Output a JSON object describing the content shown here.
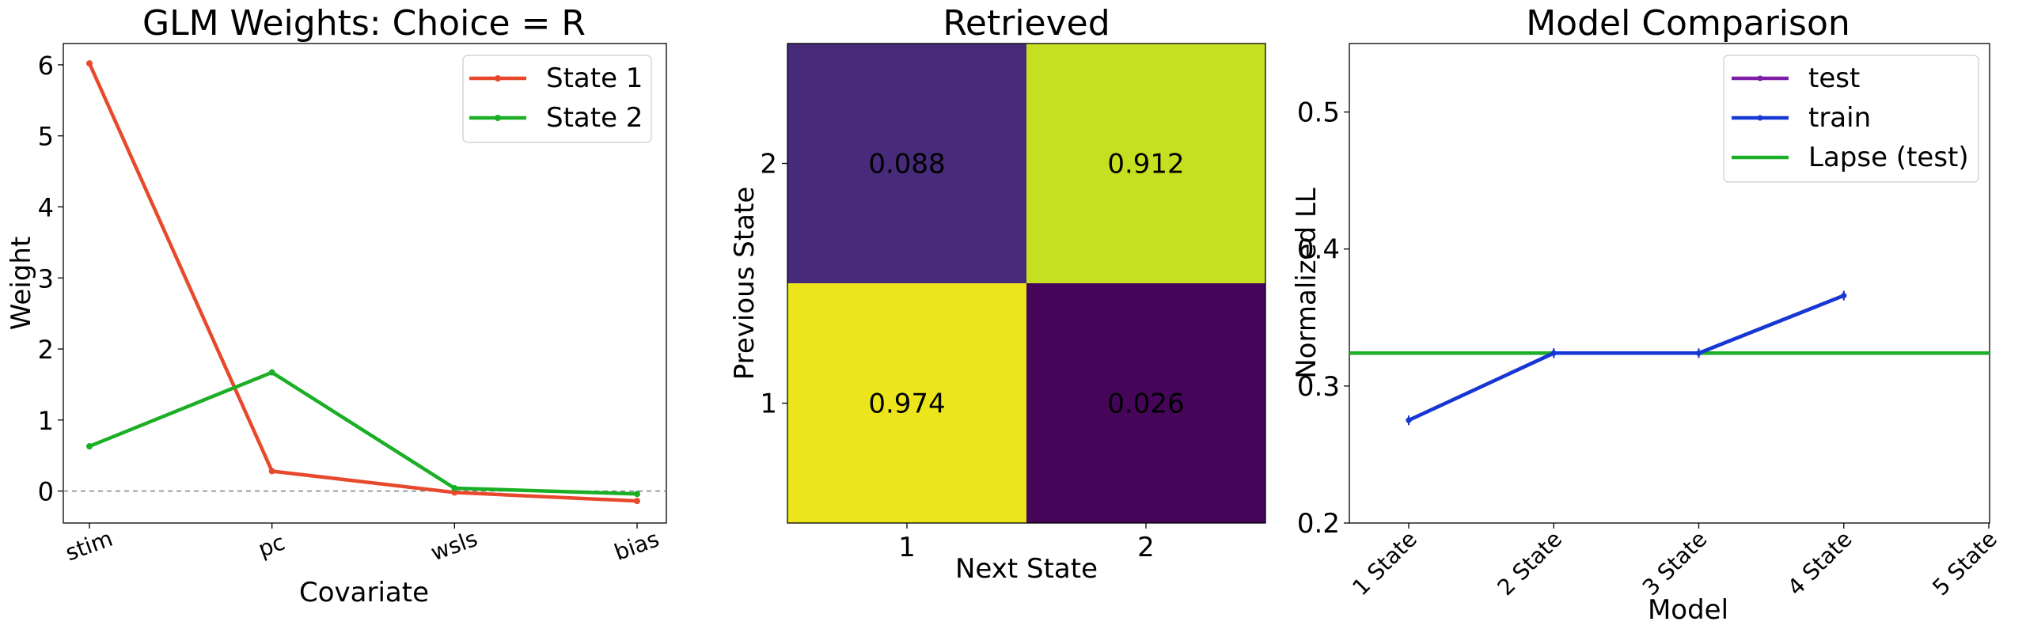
{
  "chart_data": [
    {
      "type": "line",
      "title": "GLM Weights: Choice = R",
      "xlabel": "Covariate",
      "ylabel": "Weight",
      "categories": [
        "stim",
        "pc",
        "wsls",
        "bias"
      ],
      "ylim": [
        -0.45,
        6.3
      ],
      "yticks": [
        "0",
        "1",
        "2",
        "3",
        "4",
        "5",
        "6"
      ],
      "series": [
        {
          "name": "State 1",
          "color": "#e8492d",
          "values": [
            6.02,
            0.28,
            -0.02,
            -0.14
          ]
        },
        {
          "name": "State 2",
          "color": "#1aaf24",
          "values": [
            0.63,
            1.67,
            0.04,
            -0.04
          ]
        }
      ],
      "reference_line": {
        "y": 0,
        "style": "dashed",
        "color": "#808080"
      },
      "legend": "top-right",
      "grid": false
    },
    {
      "type": "heatmap",
      "title": "Retrieved",
      "xlabel": "Next State",
      "ylabel": "Previous State",
      "x_categories": [
        "1",
        "2"
      ],
      "y_categories": [
        "1",
        "2"
      ],
      "cells": [
        {
          "row": "2",
          "col": "1",
          "value": "0.088",
          "color": "#472a7a"
        },
        {
          "row": "2",
          "col": "2",
          "value": "0.912",
          "color": "#c5e021"
        },
        {
          "row": "1",
          "col": "1",
          "value": "0.974",
          "color": "#ece51b"
        },
        {
          "row": "1",
          "col": "2",
          "value": "0.026",
          "color": "#450559"
        }
      ],
      "colormap": "viridis"
    },
    {
      "type": "line",
      "title": "Model Comparison",
      "xlabel": "Model",
      "ylabel": "Normalized LL",
      "categories": [
        "1 State",
        "2 State",
        "3 State",
        "4 State",
        "5 State"
      ],
      "ylim": [
        0.2,
        0.55
      ],
      "yticks": [
        "0.2",
        "0.3",
        "0.4",
        "0.5"
      ],
      "series": [
        {
          "name": "test",
          "color": "#7f1fa8",
          "values": [
            0.275,
            0.324,
            0.324,
            0.366,
            null
          ]
        },
        {
          "name": "train",
          "color": "#1538d4",
          "values": [
            0.275,
            0.324,
            0.324,
            0.366,
            null
          ]
        },
        {
          "name": "Lapse (test)",
          "color": "#1aaf24",
          "type": "hline",
          "value": 0.324
        }
      ],
      "legend": "top-right",
      "grid": false
    }
  ]
}
